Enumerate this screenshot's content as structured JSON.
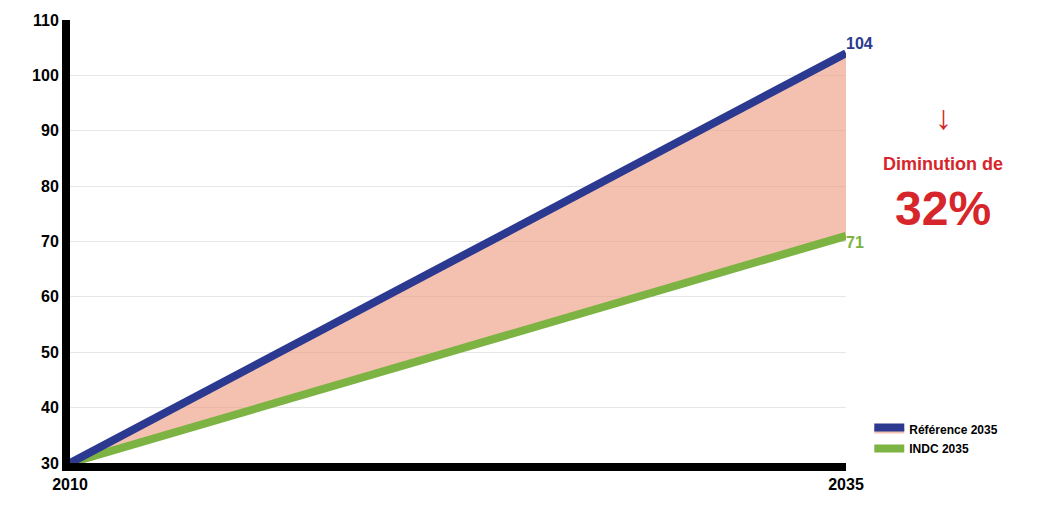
{
  "chart_data": {
    "type": "line",
    "x": [
      2010,
      2035
    ],
    "series": [
      {
        "name": "Référence 2035",
        "color": "#2b3990",
        "values": [
          30,
          104
        ],
        "value_labels": [
          null,
          "104"
        ]
      },
      {
        "name": "INDC 2035",
        "color": "#7cb342",
        "values": [
          30,
          71
        ],
        "value_labels": [
          null,
          "71"
        ]
      }
    ],
    "xlim": [
      2010,
      2035
    ],
    "xticks": [
      2010,
      2035
    ],
    "ylim": [
      30,
      110
    ],
    "yticks": [
      30,
      40,
      50,
      60,
      70,
      80,
      90,
      100,
      110
    ],
    "grid": true,
    "legend": "lower right",
    "data_labels": true,
    "annotations": [
      {
        "text": "↓"
      },
      {
        "text": "Diminution de"
      },
      {
        "text": "32%"
      }
    ]
  }
}
